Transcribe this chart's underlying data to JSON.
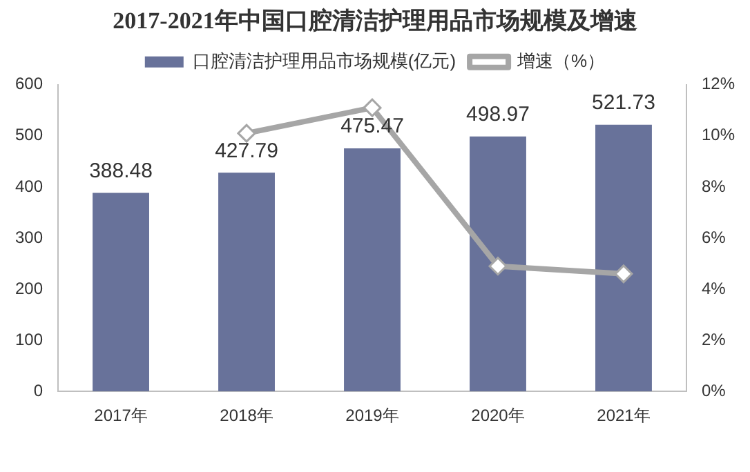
{
  "chart_data": {
    "type": "bar",
    "title": "2017-2021年中国口腔清洁护理用品市场规模及增速",
    "categories": [
      "2017年",
      "2018年",
      "2019年",
      "2020年",
      "2021年"
    ],
    "series": [
      {
        "name": "口腔清洁护理用品市场规模(亿元)",
        "color": "#68729a",
        "values": [
          388.48,
          427.79,
          475.47,
          498.97,
          521.73
        ],
        "value_labels": [
          "388.48",
          "427.79",
          "475.47",
          "498.97",
          "521.73"
        ]
      },
      {
        "name": "增速（%）",
        "type": "line",
        "axis": "y2",
        "color": "#a6a6a6",
        "marker": "diamond",
        "values": [
          null,
          10.1,
          11.1,
          4.9,
          4.6
        ]
      }
    ],
    "ylim": [
      0,
      600
    ],
    "yticks": [
      0,
      100,
      200,
      300,
      400,
      500,
      600
    ],
    "y2lim": [
      0,
      12
    ],
    "y2ticks": [
      {
        "value": 0,
        "label": "0%"
      },
      {
        "value": 2,
        "label": "2%"
      },
      {
        "value": 4,
        "label": "4%"
      },
      {
        "value": 6,
        "label": "6%"
      },
      {
        "value": 8,
        "label": "8%"
      },
      {
        "value": 10,
        "label": "10%"
      },
      {
        "value": 12,
        "label": "12%"
      }
    ],
    "legend": "top",
    "grid": false
  }
}
